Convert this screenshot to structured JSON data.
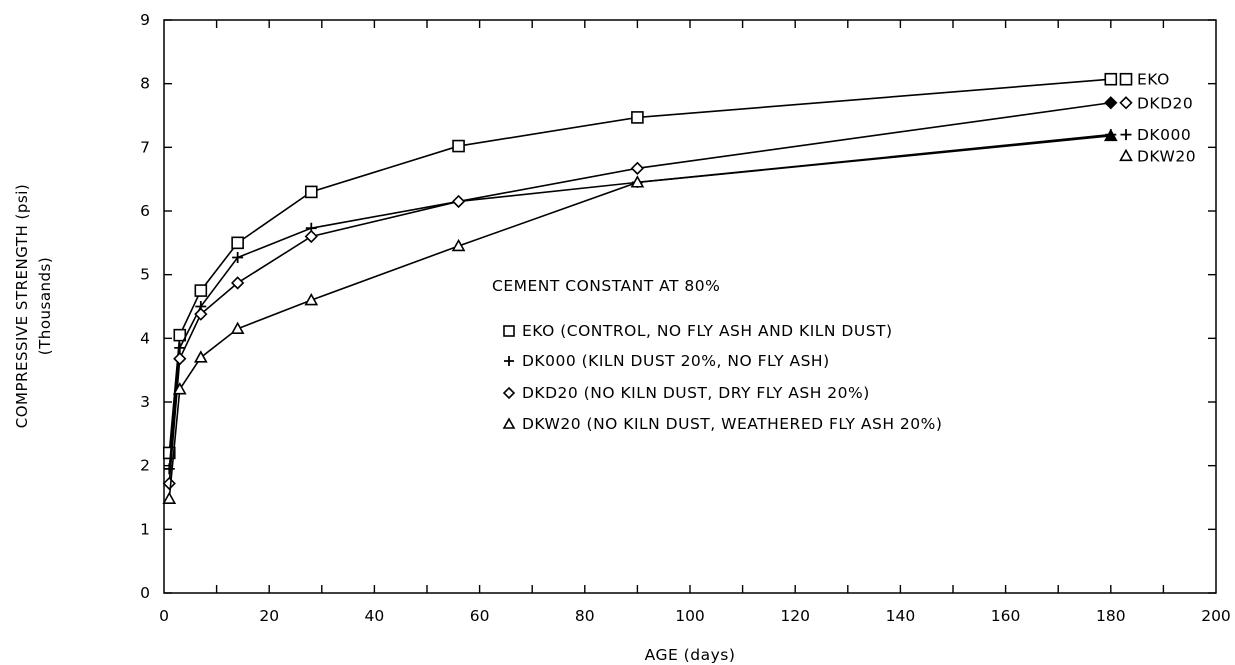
{
  "chart_data": {
    "type": "line",
    "title": "",
    "xlabel": "AGE (days)",
    "ylabel": "COMPRESSIVE STRENGTH (psi)",
    "ylabel_sub": "(Thousands)",
    "xlim": [
      0,
      200
    ],
    "ylim": [
      0,
      9
    ],
    "xticks": [
      0,
      20,
      40,
      60,
      80,
      100,
      120,
      140,
      160,
      180,
      200
    ],
    "yticks": [
      0,
      1,
      2,
      3,
      4,
      5,
      6,
      7,
      8,
      9
    ],
    "grid": false,
    "legend_title": "CEMENT CONSTANT AT 80%",
    "legend_placement": "center-right",
    "legend": [
      {
        "marker": "square",
        "text": "EKO (CONTROL, NO FLY ASH AND KILN DUST)"
      },
      {
        "marker": "plus",
        "text": "DK000 (KILN DUST 20%, NO FLY ASH)"
      },
      {
        "marker": "diamond",
        "text": "DKD20 (NO KILN DUST, DRY FLY ASH 20%)"
      },
      {
        "marker": "triangle",
        "text": "DKW20 (NO KILN DUST, WEATHERED FLY ASH 20%)"
      }
    ],
    "series": [
      {
        "name": "EKO",
        "marker": "square",
        "end_label": "EKO",
        "x": [
          1,
          3,
          7,
          14,
          28,
          56,
          90,
          180
        ],
        "y": [
          2.2,
          4.05,
          4.75,
          5.5,
          6.3,
          7.02,
          7.47,
          8.07
        ]
      },
      {
        "name": "DK000",
        "marker": "plus",
        "end_label": "DK000",
        "x": [
          1,
          3,
          7,
          14,
          28,
          56,
          90,
          180
        ],
        "y": [
          1.95,
          3.85,
          4.5,
          5.27,
          5.73,
          6.15,
          6.45,
          7.2
        ]
      },
      {
        "name": "DKD20",
        "marker": "diamond",
        "end_label": "DKD20",
        "x": [
          1,
          3,
          7,
          14,
          28,
          56,
          90,
          180
        ],
        "y": [
          1.72,
          3.68,
          4.38,
          4.87,
          5.6,
          6.15,
          6.67,
          7.7
        ]
      },
      {
        "name": "DKW20",
        "marker": "triangle",
        "end_label": "DKW20",
        "x": [
          1,
          3,
          7,
          14,
          28,
          56,
          90,
          180
        ],
        "y": [
          1.48,
          3.2,
          3.7,
          4.15,
          4.6,
          5.45,
          6.45,
          7.18
        ]
      }
    ]
  },
  "colors": {
    "ink": "#000000",
    "background": "#ffffff"
  }
}
